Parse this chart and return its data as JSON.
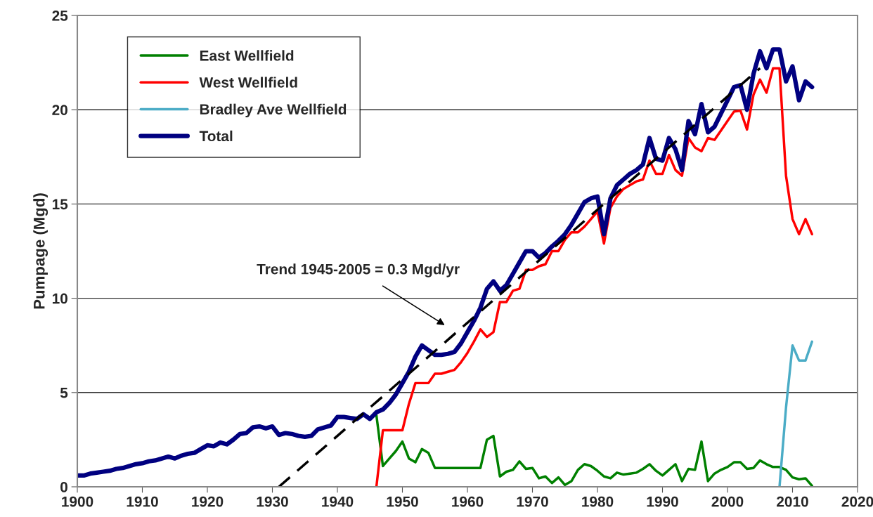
{
  "chart_data": {
    "type": "line",
    "ylabel": "Pumpage (Mgd)",
    "xlim": [
      1900,
      2020
    ],
    "xticks": [
      1900,
      1910,
      1920,
      1930,
      1940,
      1950,
      1960,
      1970,
      1980,
      1990,
      2000,
      2010,
      2020
    ],
    "ylim": [
      0,
      25
    ],
    "yticks": [
      0,
      5,
      10,
      15,
      20,
      25
    ],
    "grid": "y",
    "legend": "top left",
    "marker": "none",
    "series": [
      {
        "name": "East Wellfield",
        "color": "#008000",
        "x": [
          1946,
          1947,
          1948,
          1949,
          1950,
          1951,
          1952,
          1953,
          1954,
          1955,
          1956,
          1957,
          1958,
          1959,
          1960,
          1961,
          1962,
          1963,
          1964,
          1965,
          1966,
          1967,
          1968,
          1969,
          1970,
          1971,
          1972,
          1973,
          1974,
          1975,
          1976,
          1977,
          1978,
          1979,
          1980,
          1981,
          1982,
          1983,
          1984,
          1985,
          1986,
          1987,
          1988,
          1989,
          1990,
          1991,
          1992,
          1993,
          1994,
          1995,
          1996,
          1997,
          1998,
          1999,
          2000,
          2001,
          2002,
          2003,
          2004,
          2005,
          2006,
          2007,
          2008,
          2009,
          2010,
          2011,
          2012,
          2013
        ],
        "values": [
          3.8,
          1.1,
          1.5,
          1.9,
          2.4,
          1.5,
          1.3,
          2.0,
          1.8,
          1.0,
          1.0,
          1.0,
          1.0,
          1.0,
          1.0,
          1.0,
          1.0,
          2.5,
          2.7,
          0.55,
          0.8,
          0.9,
          1.35,
          0.95,
          1.0,
          0.45,
          0.55,
          0.2,
          0.5,
          0.1,
          0.3,
          0.9,
          1.2,
          1.1,
          0.85,
          0.55,
          0.45,
          0.75,
          0.65,
          0.7,
          0.75,
          0.95,
          1.2,
          0.85,
          0.6,
          0.9,
          1.2,
          0.3,
          0.95,
          0.9,
          2.4,
          0.3,
          0.7,
          0.9,
          1.05,
          1.3,
          1.3,
          0.95,
          1.0,
          1.4,
          1.2,
          1.05,
          1.05,
          0.9,
          0.5,
          0.4,
          0.45,
          0.05
        ]
      },
      {
        "name": "West Wellfield",
        "color": "#ff0000",
        "x": [
          1946,
          1947,
          1948,
          1949,
          1950,
          1951,
          1952,
          1953,
          1954,
          1955,
          1956,
          1957,
          1958,
          1959,
          1960,
          1961,
          1962,
          1963,
          1964,
          1965,
          1966,
          1967,
          1968,
          1969,
          1970,
          1971,
          1972,
          1973,
          1974,
          1975,
          1976,
          1977,
          1978,
          1979,
          1980,
          1981,
          1982,
          1983,
          1984,
          1985,
          1986,
          1987,
          1988,
          1989,
          1990,
          1991,
          1992,
          1993,
          1994,
          1995,
          1996,
          1997,
          1998,
          1999,
          2000,
          2001,
          2002,
          2003,
          2004,
          2005,
          2006,
          2007,
          2008,
          2009,
          2010,
          2011,
          2012,
          2013
        ],
        "values": [
          0,
          3.0,
          3.0,
          3.0,
          3.0,
          4.4,
          5.5,
          5.5,
          5.5,
          6.0,
          6.0,
          6.1,
          6.2,
          6.6,
          7.1,
          7.7,
          8.35,
          7.95,
          8.2,
          9.8,
          9.8,
          10.4,
          10.5,
          11.5,
          11.5,
          11.7,
          11.8,
          12.5,
          12.5,
          13.1,
          13.5,
          13.5,
          13.8,
          14.2,
          14.6,
          12.9,
          14.8,
          15.4,
          15.8,
          16.0,
          16.2,
          16.3,
          17.3,
          16.6,
          16.6,
          17.6,
          16.8,
          16.5,
          18.5,
          18.0,
          17.8,
          18.5,
          18.4,
          18.9,
          19.4,
          19.9,
          19.95,
          18.95,
          20.8,
          21.6,
          20.9,
          22.2,
          22.2,
          16.5,
          14.2,
          13.4,
          14.2,
          13.4
        ]
      },
      {
        "name": "Bradley Ave Wellfield",
        "color": "#4bacc6",
        "x": [
          2008,
          2009,
          2010,
          2011,
          2012,
          2013
        ],
        "values": [
          0,
          4.2,
          7.5,
          6.7,
          6.7,
          7.7
        ]
      },
      {
        "name": "Total",
        "color": "#000080",
        "x": [
          1900,
          1901,
          1902,
          1903,
          1904,
          1905,
          1906,
          1907,
          1908,
          1909,
          1910,
          1911,
          1912,
          1913,
          1914,
          1915,
          1916,
          1917,
          1918,
          1919,
          1920,
          1921,
          1922,
          1923,
          1924,
          1925,
          1926,
          1927,
          1928,
          1929,
          1930,
          1931,
          1932,
          1933,
          1934,
          1935,
          1936,
          1937,
          1938,
          1939,
          1940,
          1941,
          1942,
          1943,
          1944,
          1945,
          1946,
          1947,
          1948,
          1949,
          1950,
          1951,
          1952,
          1953,
          1954,
          1955,
          1956,
          1957,
          1958,
          1959,
          1960,
          1961,
          1962,
          1963,
          1964,
          1965,
          1966,
          1967,
          1968,
          1969,
          1970,
          1971,
          1972,
          1973,
          1974,
          1975,
          1976,
          1977,
          1978,
          1979,
          1980,
          1981,
          1982,
          1983,
          1984,
          1985,
          1986,
          1987,
          1988,
          1989,
          1990,
          1991,
          1992,
          1993,
          1994,
          1995,
          1996,
          1997,
          1998,
          1999,
          2000,
          2001,
          2002,
          2003,
          2004,
          2005,
          2006,
          2007,
          2008,
          2009,
          2010,
          2011,
          2012,
          2013
        ],
        "values": [
          0.6,
          0.6,
          0.7,
          0.75,
          0.8,
          0.85,
          0.95,
          1.0,
          1.1,
          1.2,
          1.25,
          1.35,
          1.4,
          1.5,
          1.6,
          1.5,
          1.65,
          1.75,
          1.8,
          2.0,
          2.2,
          2.15,
          2.35,
          2.25,
          2.5,
          2.8,
          2.85,
          3.15,
          3.2,
          3.1,
          3.2,
          2.75,
          2.85,
          2.8,
          2.7,
          2.65,
          2.7,
          3.05,
          3.15,
          3.25,
          3.7,
          3.7,
          3.65,
          3.6,
          3.85,
          3.6,
          3.95,
          4.1,
          4.45,
          4.9,
          5.5,
          6.1,
          6.9,
          7.5,
          7.25,
          7.0,
          7.0,
          7.05,
          7.15,
          7.6,
          8.2,
          8.8,
          9.5,
          10.5,
          10.9,
          10.4,
          10.7,
          11.3,
          11.9,
          12.5,
          12.5,
          12.15,
          12.4,
          12.75,
          13.05,
          13.4,
          13.9,
          14.5,
          15.1,
          15.3,
          15.4,
          13.4,
          15.3,
          16.0,
          16.3,
          16.6,
          16.8,
          17.1,
          18.5,
          17.4,
          17.3,
          18.5,
          17.9,
          16.8,
          19.4,
          18.7,
          20.3,
          18.8,
          19.1,
          19.8,
          20.5,
          21.2,
          21.3,
          20.0,
          21.9,
          23.1,
          22.2,
          23.2,
          23.2,
          21.5,
          22.3,
          20.5,
          21.5,
          21.2
        ]
      },
      {
        "color": "#000000",
        "line_style": "dashed",
        "x": [
          1931,
          2005
        ],
        "values": [
          0,
          22.2
        ]
      }
    ],
    "annotations": [
      "Trend 1945-2005 = 0.3 Mgd/yr"
    ]
  }
}
